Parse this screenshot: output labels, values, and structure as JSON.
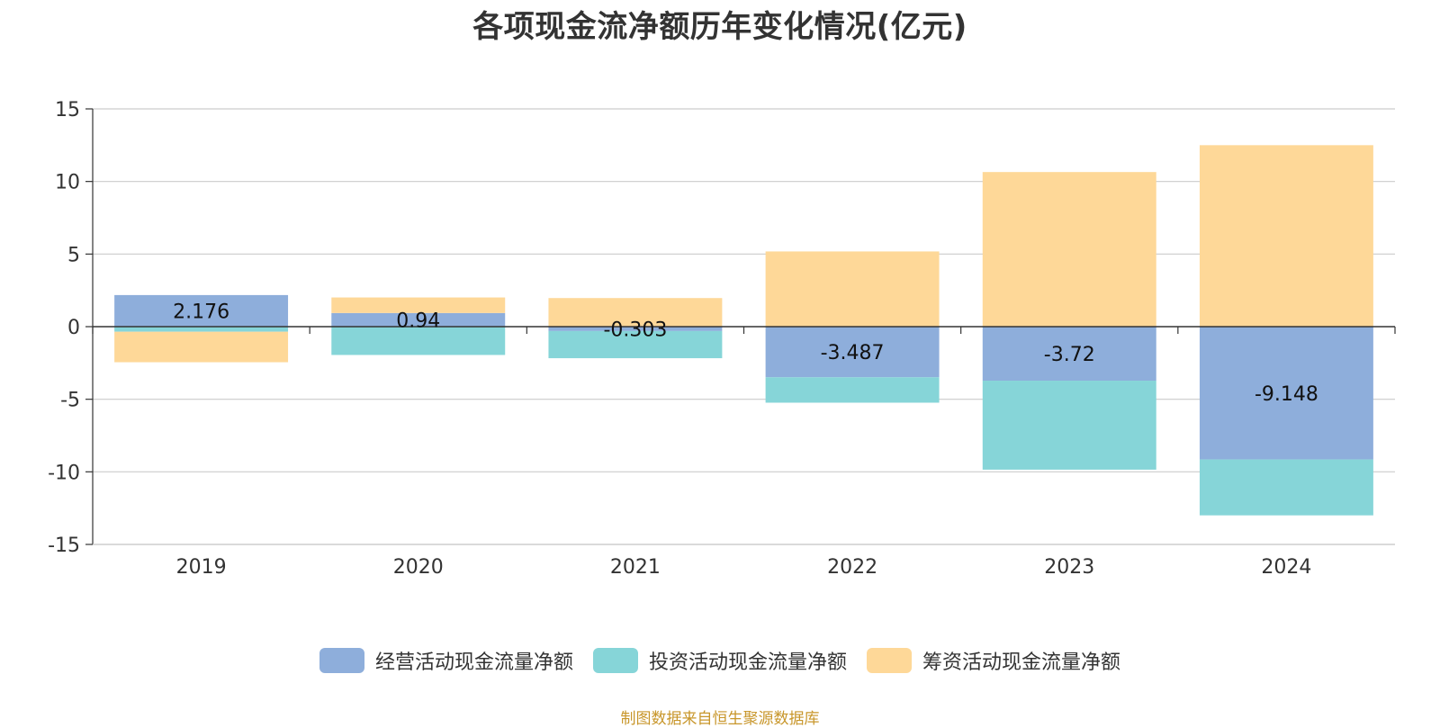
{
  "chart_data": {
    "type": "bar",
    "stacked": true,
    "title": "各项现金流净额历年变化情况(亿元)",
    "categories": [
      "2019",
      "2020",
      "2021",
      "2022",
      "2023",
      "2024"
    ],
    "ylim": [
      -15,
      15
    ],
    "yticks": [
      15,
      10,
      5,
      0,
      -5,
      -10,
      -15
    ],
    "grid": true,
    "legend_position": "bottom",
    "series": [
      {
        "name": "经营活动现金流量净额",
        "color": "#8eaedb",
        "values": [
          2.176,
          0.94,
          -0.303,
          -3.487,
          -3.72,
          -9.148
        ],
        "labels": [
          "2.176",
          "0.94",
          "-0.303",
          "-3.487",
          "-3.72",
          "-9.148"
        ]
      },
      {
        "name": "投资活动现金流量净额",
        "color": "#86d5d8",
        "values": [
          -0.35,
          -1.95,
          -1.87,
          -1.75,
          -6.13,
          -3.85
        ]
      },
      {
        "name": "筹资活动现金流量净额",
        "color": "#fed898",
        "values": [
          -2.1,
          1.07,
          1.97,
          5.18,
          10.65,
          12.5
        ]
      }
    ]
  },
  "source_note": "制图数据来自恒生聚源数据库"
}
